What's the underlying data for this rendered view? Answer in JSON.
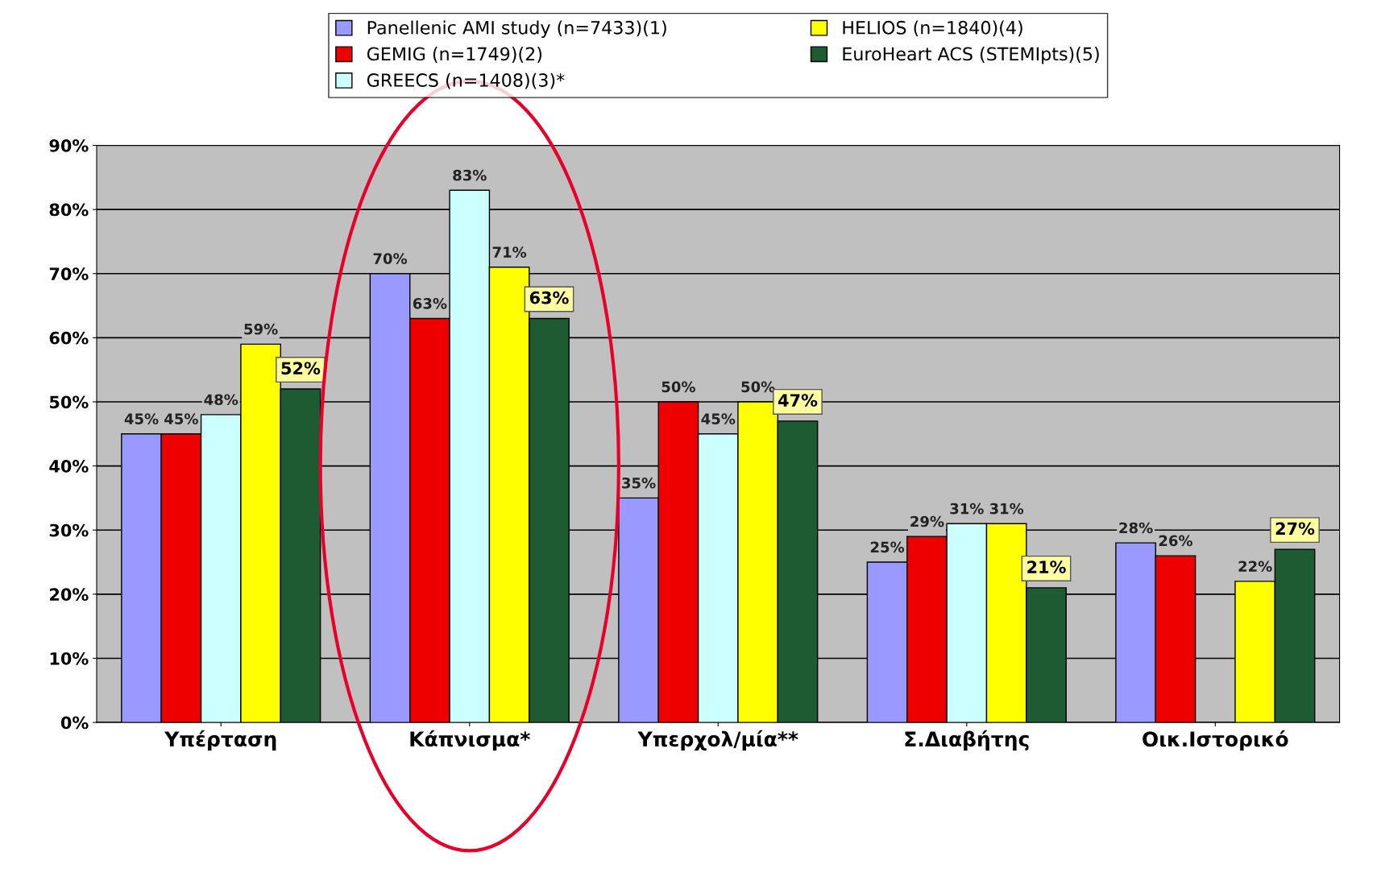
{
  "chart_data": {
    "type": "bar",
    "categories": [
      "Υπέρταση",
      "Κάπνισμα*",
      "Υπερχολ/μία**",
      "Σ.Διαβήτης",
      "Οικ.Ιστορικό"
    ],
    "series": [
      {
        "name": "Panellenic AMI study (n=7433)(1)",
        "color": "#9999ff",
        "values": [
          45,
          70,
          35,
          25,
          28
        ],
        "value_labels": [
          "45%",
          "70%",
          "35%",
          "25%",
          "28%"
        ]
      },
      {
        "name": "GEMIG (n=1749)(2)",
        "color": "#ee0000",
        "values": [
          45,
          63,
          50,
          29,
          26
        ],
        "value_labels": [
          "45%",
          "63%",
          "50%",
          "29%",
          "26%"
        ]
      },
      {
        "name": "GREECS (n=1408)(3)*",
        "color": "#ccffff",
        "values": [
          48,
          83,
          45,
          31,
          null
        ],
        "value_labels": [
          "48%",
          "83%",
          "45%",
          "31%",
          null
        ]
      },
      {
        "name": "HELIOS (n=1840)(4)",
        "color": "#ffff00",
        "values": [
          59,
          71,
          50,
          31,
          22
        ],
        "value_labels": [
          "59%",
          "71%",
          "50%",
          "31%",
          "22%"
        ]
      },
      {
        "name": "EuroHeart ACS (STEMIpts)(5)",
        "color": "#1e5a32",
        "values": [
          52,
          63,
          47,
          21,
          27
        ],
        "value_labels": [
          "52%",
          "63%",
          "47%",
          "21%",
          "27%"
        ]
      }
    ],
    "ylim": [
      0,
      90
    ],
    "yticks": [
      {
        "value": 0,
        "label": "0%"
      },
      {
        "value": 10,
        "label": "10%"
      },
      {
        "value": 20,
        "label": "20%"
      },
      {
        "value": 30,
        "label": "30%"
      },
      {
        "value": 40,
        "label": "40%"
      },
      {
        "value": 50,
        "label": "50%"
      },
      {
        "value": 60,
        "label": "60%"
      },
      {
        "value": 70,
        "label": "70%"
      },
      {
        "value": 80,
        "label": "80%"
      },
      {
        "value": 90,
        "label": "90%"
      }
    ],
    "grid": "y",
    "legend": "top"
  }
}
